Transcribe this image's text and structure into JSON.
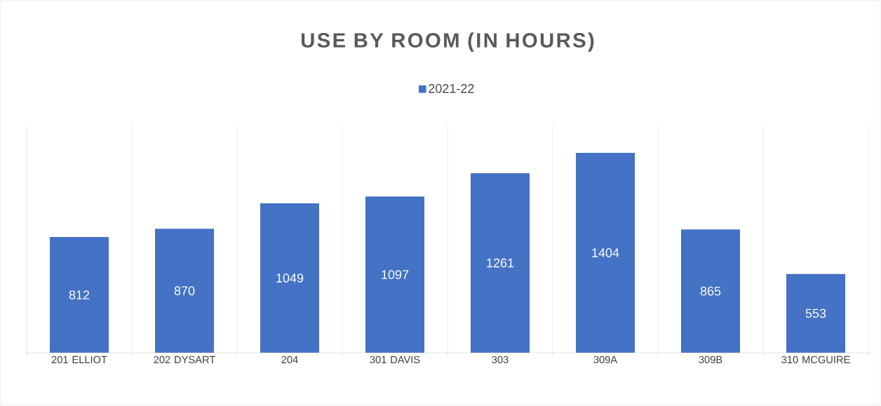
{
  "chart_data": {
    "type": "bar",
    "title": "USE BY ROOM (IN HOURS)",
    "categories": [
      "201 ELLIOT",
      "202 DYSART",
      "204",
      "301 DAVIS",
      "303",
      "309A",
      "309B",
      "310 MCGUIRE"
    ],
    "series": [
      {
        "name": "2021-22",
        "color": "#4472c4",
        "values": [
          812,
          870,
          1049,
          1097,
          1261,
          1404,
          865,
          553
        ]
      }
    ],
    "data_labels": true,
    "grid": "x",
    "legend": "top"
  }
}
